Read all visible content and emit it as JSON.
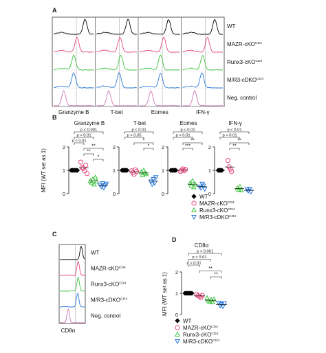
{
  "colors": {
    "wt": "#000000",
    "mazr": "#e8467c",
    "runx3": "#3cc43c",
    "dko": "#2a78d8",
    "neg": "#c878b4",
    "grid": "#9a9a9a"
  },
  "chart_data": [
    {
      "panel": "A",
      "type": "area",
      "columns": [
        "Granzyme B",
        "T-bet",
        "Eomes",
        "IFN-γ"
      ],
      "rows": [
        "WT",
        "MAZR-cKO",
        "Runx3-cKO",
        "M/R3-cDKO",
        "Neg. control"
      ],
      "row_superscripts": [
        "",
        "CD4",
        "CD4",
        "CD4",
        ""
      ],
      "row_colors": [
        "#000000",
        "#e8467c",
        "#3cc43c",
        "#2a78d8",
        "#c878b4"
      ],
      "ref_line": true
    },
    {
      "panel": "B",
      "type": "scatter",
      "ylabel": "MFI (WT set as 1)",
      "ylim": [
        0,
        2
      ],
      "yticks": [
        0,
        1,
        2
      ],
      "groups": [
        "WT",
        "MAZR-cKO",
        "Runx3-cKO",
        "M/R3-cDKO"
      ],
      "superscripts": [
        "",
        "CD4",
        "CD4",
        "CD4"
      ],
      "markers": [
        "diamond",
        "circle",
        "triangle-up",
        "triangle-down"
      ],
      "subplots": [
        {
          "title": "Granzyme B",
          "values": [
            [
              1,
              1,
              1,
              1,
              1,
              1
            ],
            [
              1.35,
              1.12,
              1.08,
              0.98,
              1.22,
              0.86
            ],
            [
              0.55,
              0.48,
              0.62,
              0.4,
              0.7,
              0.52
            ],
            [
              0.38,
              0.3,
              0.44,
              0.25,
              0.35,
              0.42
            ]
          ],
          "brackets": [
            {
              "from": 0,
              "to": 3,
              "label": "p < 0.001"
            },
            {
              "from": 0,
              "to": 2,
              "label": "p < 0.01"
            },
            {
              "from": 0,
              "to": 1,
              "label": "p < 0.01"
            },
            {
              "from": 1,
              "to": 3,
              "label": "**"
            },
            {
              "from": 1,
              "to": 2,
              "label": "**"
            },
            {
              "from": 2,
              "to": 3,
              "label": "*"
            }
          ]
        },
        {
          "title": "T-bet",
          "values": [
            [
              1,
              1,
              1,
              1,
              1
            ],
            [
              0.98,
              0.9,
              0.83,
              1.02,
              0.95
            ],
            [
              0.92,
              0.8,
              1.0,
              0.88,
              0.84
            ],
            [
              0.52,
              0.4,
              0.62,
              0.46,
              0.7
            ]
          ],
          "brackets": [
            {
              "from": 0,
              "to": 3,
              "label": "p < 0.01"
            },
            {
              "from": 0,
              "to": 2,
              "label": "p < 0.05"
            },
            {
              "from": 1,
              "to": 3,
              "label": "*"
            },
            {
              "from": 2,
              "to": 3,
              "label": "*"
            }
          ]
        },
        {
          "title": "Eomes",
          "values": [
            [
              1,
              1,
              1,
              1,
              1
            ],
            [
              0.95,
              1.0,
              1.06,
              0.98,
              1.04
            ],
            [
              0.45,
              0.35,
              0.55,
              0.28,
              0.4
            ],
            [
              0.3,
              0.24,
              0.42,
              0.34,
              0.2
            ]
          ],
          "brackets": [
            {
              "from": 0,
              "to": 3,
              "label": "p < 0.01"
            },
            {
              "from": 0,
              "to": 2,
              "label": "p < 0.01"
            },
            {
              "from": 1,
              "to": 3,
              "label": "**"
            },
            {
              "from": 1,
              "to": 2,
              "label": "***"
            }
          ]
        },
        {
          "title": "IFN-γ",
          "values": [
            [
              1,
              1,
              1,
              1
            ],
            [
              1.42,
              1.15,
              1.05,
              0.95
            ],
            [
              0.24,
              0.18,
              0.3,
              0.15
            ],
            [
              0.17,
              0.12,
              0.2,
              0.08
            ]
          ],
          "brackets": [
            {
              "from": 0,
              "to": 3,
              "label": "p < 0.01"
            },
            {
              "from": 0,
              "to": 2,
              "label": "p < 0.01"
            },
            {
              "from": 1,
              "to": 3,
              "label": "**"
            },
            {
              "from": 1,
              "to": 2,
              "label": "**"
            }
          ]
        }
      ]
    },
    {
      "panel": "C",
      "type": "area",
      "columns": [
        "CD8α"
      ],
      "rows": [
        "WT",
        "MAZR-cKO",
        "Runx3-cKO",
        "M/R3-cDKO",
        "Neg. control"
      ],
      "row_superscripts": [
        "",
        "CD4",
        "CD4",
        "CD4",
        ""
      ],
      "row_colors": [
        "#000000",
        "#e8467c",
        "#3cc43c",
        "#2a78d8",
        "#c878b4"
      ],
      "ref_line": true
    },
    {
      "panel": "D",
      "type": "scatter",
      "title": "CD8α",
      "ylabel": "MFI (WT set as 1)",
      "ylim": [
        0,
        2
      ],
      "yticks": [
        0,
        1,
        2
      ],
      "groups": [
        "WT",
        "MAZR-cKO",
        "Runx3-cKO",
        "M/R3-cDKO"
      ],
      "superscripts": [
        "",
        "CD4",
        "CD4",
        "CD4"
      ],
      "markers": [
        "diamond",
        "circle",
        "triangle-up",
        "triangle-down"
      ],
      "values": [
        [
          1,
          1,
          1,
          1,
          1,
          1
        ],
        [
          0.95,
          0.88,
          0.85,
          0.8,
          0.9
        ],
        [
          0.78,
          0.66,
          0.6,
          0.7,
          0.58,
          0.72
        ],
        [
          0.55,
          0.42,
          0.48,
          0.38,
          0.52
        ]
      ],
      "brackets": [
        {
          "from": 0,
          "to": 3,
          "label": "p < 0.001"
        },
        {
          "from": 0,
          "to": 2,
          "label": "p < 0.01"
        },
        {
          "from": 0,
          "to": 1,
          "label": "p < 0.01"
        },
        {
          "from": 1,
          "to": 3,
          "label": "**"
        },
        {
          "from": 2,
          "to": 3,
          "label": "**"
        }
      ]
    }
  ],
  "panel_letters": [
    "A",
    "B",
    "C",
    "D"
  ],
  "legend_labels": [
    "WT",
    "MAZR-cKO",
    "Runx3-cKO",
    "M/R3-cDKO"
  ]
}
